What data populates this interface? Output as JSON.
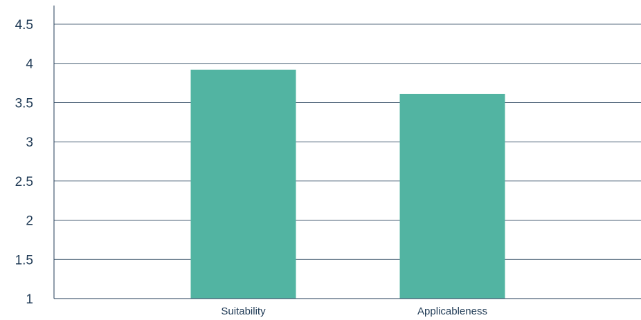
{
  "chart_data": {
    "type": "bar",
    "categories": [
      "Suitability",
      "Applicableness"
    ],
    "values": [
      3.92,
      3.61
    ],
    "title": "",
    "xlabel": "",
    "ylabel": "",
    "ylim": [
      1,
      4.5
    ],
    "yticks": [
      "1",
      "1.5",
      "2",
      "2.5",
      "3",
      "3.5",
      "4",
      "4.5"
    ],
    "grid": true,
    "legend": "none",
    "colors": {
      "bar": "#52b4a2",
      "grid": "#1f3a55",
      "axis": "#1f3a55",
      "text": "#1f3a55"
    }
  }
}
